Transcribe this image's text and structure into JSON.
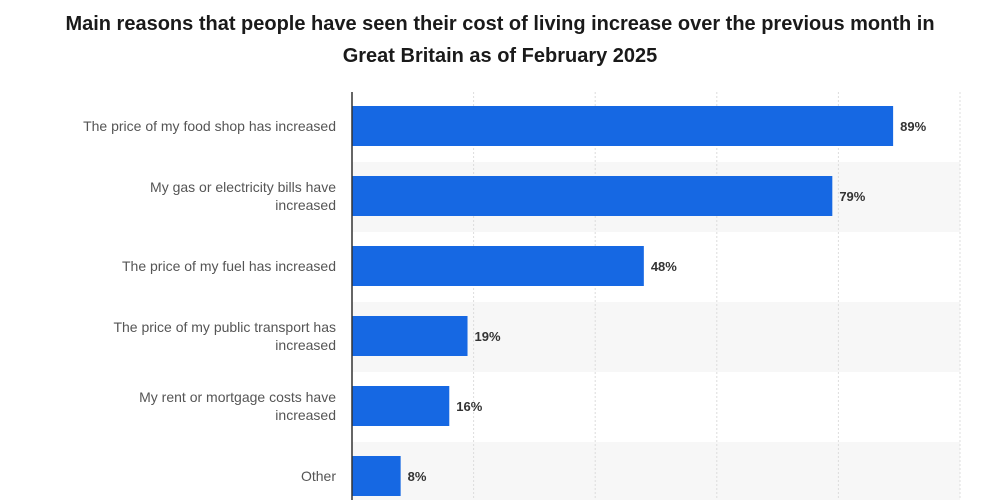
{
  "chart_data": {
    "type": "bar",
    "orientation": "horizontal",
    "title": "Main reasons that people have seen their cost of living increase over the previous month in Great Britain as of February 2025",
    "categories": [
      "The price of my food shop has increased",
      "My gas or electricity bills have increased",
      "The price of my fuel has increased",
      "The price of my public transport has increased",
      "My rent or mortgage costs have increased",
      "Other"
    ],
    "values": [
      89,
      79,
      48,
      19,
      16,
      8
    ],
    "value_labels": [
      "89%",
      "79%",
      "48%",
      "19%",
      "16%",
      "8%"
    ],
    "unit": "%",
    "xlim": [
      0,
      100
    ],
    "grid": true,
    "bar_color": "#1668e3"
  }
}
